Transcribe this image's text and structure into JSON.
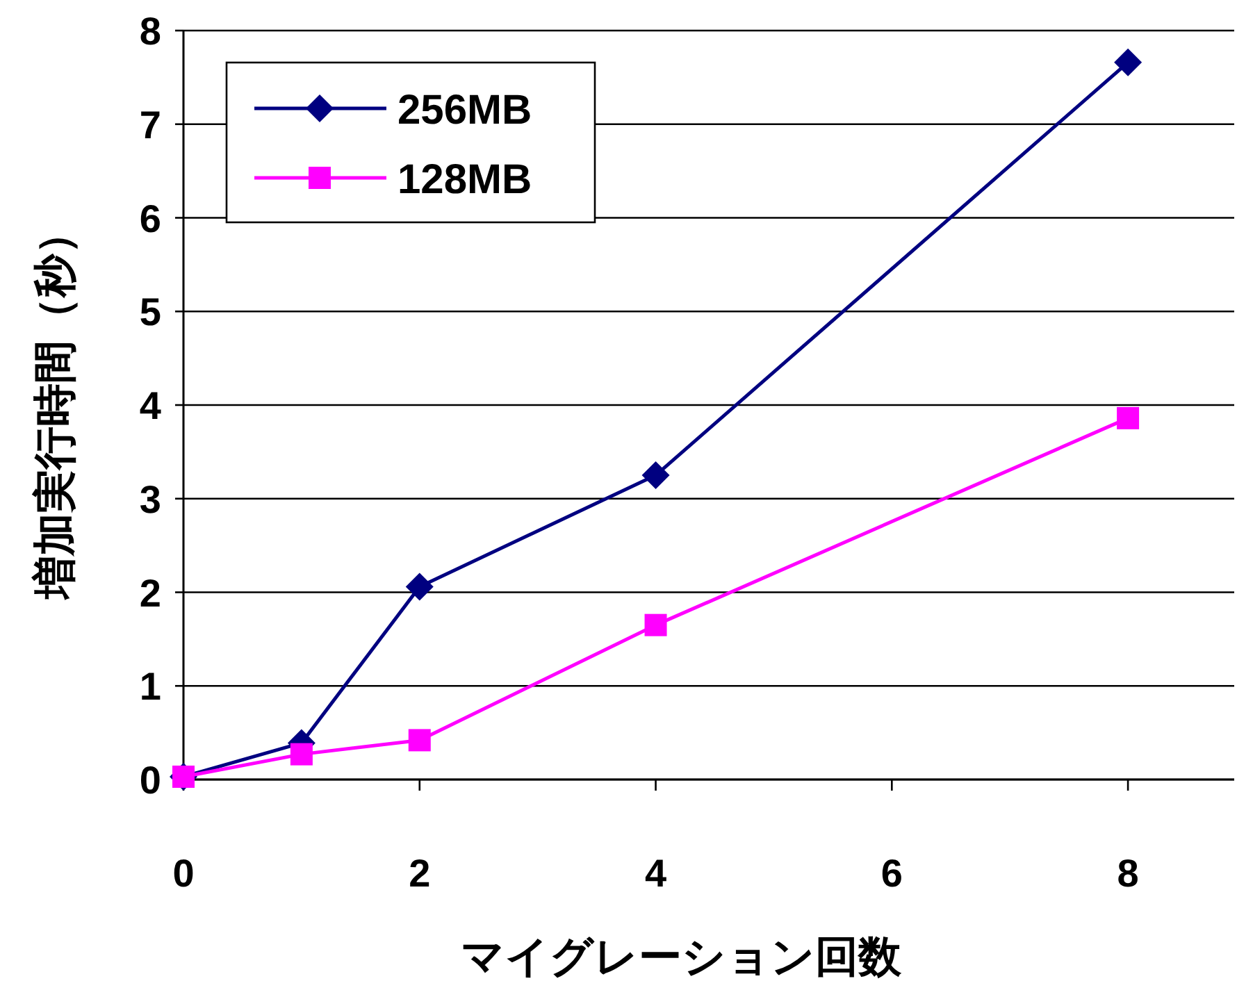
{
  "chart_data": {
    "type": "line",
    "xlabel": "マイグレーション回数",
    "ylabel": "増加実行時間（秒）",
    "x": [
      0,
      1,
      2,
      4,
      8
    ],
    "series": [
      {
        "name": "256MB",
        "color": "#000080",
        "marker": "diamond",
        "values": [
          0.03,
          0.39,
          2.06,
          3.25,
          7.66
        ]
      },
      {
        "name": "128MB",
        "color": "#ff00ff",
        "marker": "square",
        "values": [
          0.03,
          0.27,
          0.42,
          1.65,
          3.86
        ]
      }
    ],
    "xlim": [
      0,
      8.9
    ],
    "ylim": [
      0,
      8
    ],
    "xticks": [
      0,
      2,
      4,
      6,
      8
    ],
    "yticks": [
      0,
      1,
      2,
      3,
      4,
      5,
      6,
      7,
      8
    ],
    "grid": "y",
    "legend": "top left",
    "line_style": "solid"
  }
}
